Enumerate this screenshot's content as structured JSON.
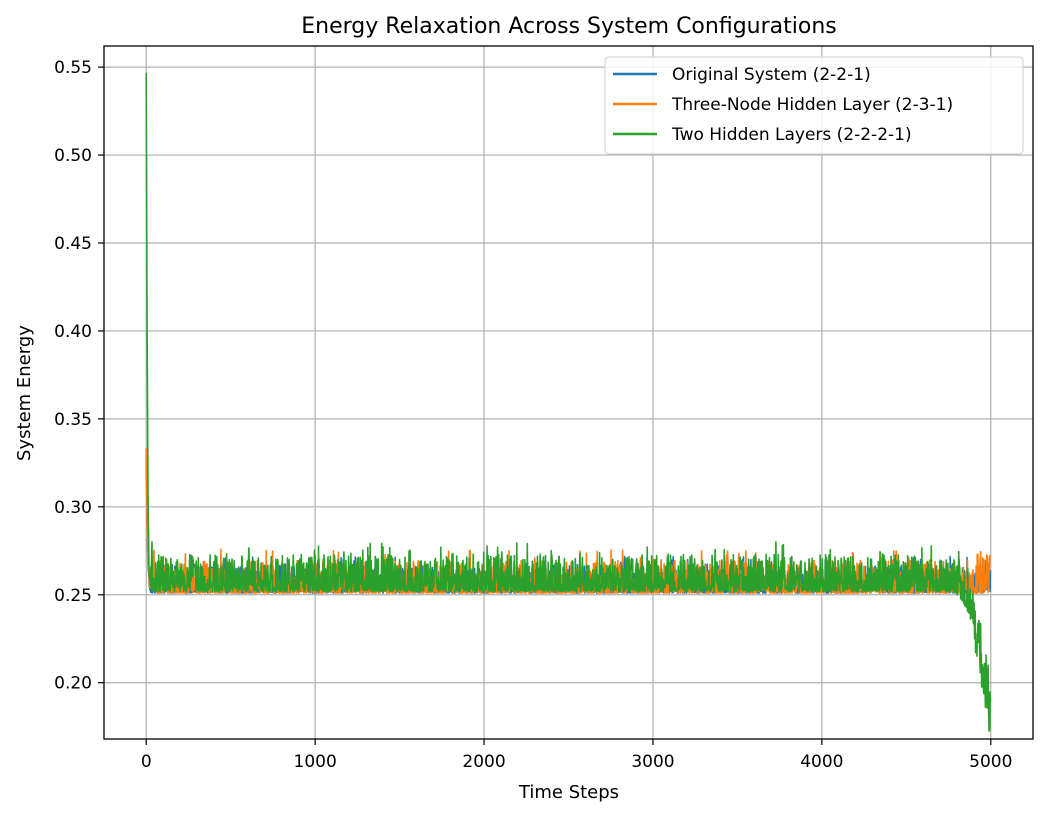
{
  "chart_data": {
    "type": "line",
    "title": "Energy Relaxation Across System Configurations",
    "xlabel": "Time Steps",
    "ylabel": "System Energy",
    "xlim": [
      -250,
      5250
    ],
    "ylim": [
      0.168,
      0.562
    ],
    "xticks": [
      0,
      1000,
      2000,
      3000,
      4000,
      5000
    ],
    "xtick_labels": [
      "0",
      "1000",
      "2000",
      "3000",
      "4000",
      "5000"
    ],
    "yticks": [
      0.2,
      0.25,
      0.3,
      0.35,
      0.4,
      0.45,
      0.5,
      0.55
    ],
    "ytick_labels": [
      "0.20",
      "0.25",
      "0.30",
      "0.35",
      "0.40",
      "0.45",
      "0.50",
      "0.55"
    ],
    "grid": true,
    "legend_position": "top-right",
    "n_points": 5000,
    "series": [
      {
        "name": "Original System (2-2-1)",
        "color": "#1f77b4",
        "start_value": 0.33,
        "settle_value": 0.251,
        "noise_band": [
          0.251,
          0.272
        ],
        "end_value": 0.252
      },
      {
        "name": "Three-Node Hidden Layer (2-3-1)",
        "color": "#ff7f0e",
        "start_value": 0.33,
        "settle_value": 0.251,
        "noise_band": [
          0.251,
          0.276
        ],
        "end_value": 0.251
      },
      {
        "name": "Two Hidden Layers (2-2-2-1)",
        "color": "#2ca02c",
        "start_value": 0.543,
        "settle_value": 0.252,
        "noise_band": [
          0.252,
          0.28
        ],
        "end_value": 0.185
      }
    ]
  }
}
